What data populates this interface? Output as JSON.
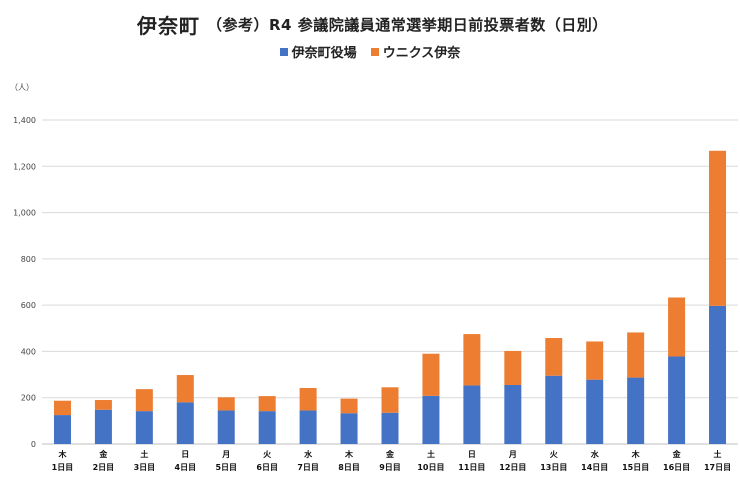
{
  "title": {
    "main": "伊奈町",
    "sub": "（参考）R4 参議院議員通常選挙期日前投票者数（日別）"
  },
  "unit_label": "（人）",
  "colors": {
    "town_hall": "#4472c4",
    "unix": "#ed7d31",
    "grid": "#d9d9d9"
  },
  "chart_data": {
    "type": "bar",
    "stacked": true,
    "categories": [
      "1日目",
      "2日目",
      "3日目",
      "4日目",
      "5日目",
      "6日目",
      "7日目",
      "8日目",
      "9日目",
      "10日目",
      "11日目",
      "12日目",
      "13日目",
      "14日目",
      "15日目",
      "16日目",
      "17日目"
    ],
    "weekdays": [
      "木",
      "金",
      "土",
      "日",
      "月",
      "火",
      "水",
      "木",
      "金",
      "土",
      "日",
      "月",
      "火",
      "水",
      "木",
      "金",
      "土"
    ],
    "series": [
      {
        "name": "伊奈町役場",
        "values": [
          125,
          148,
          142,
          180,
          145,
          142,
          145,
          133,
          135,
          208,
          253,
          255,
          295,
          278,
          287,
          378,
          597
        ]
      },
      {
        "name": "ウニクス伊奈",
        "values": [
          62,
          42,
          95,
          118,
          57,
          65,
          97,
          63,
          110,
          182,
          222,
          147,
          163,
          165,
          195,
          255,
          670
        ]
      }
    ],
    "ylim": [
      0,
      1400
    ],
    "yticks": [
      "0",
      "200",
      "400",
      "600",
      "800",
      "1,000",
      "1,200",
      "1,400"
    ],
    "grid": true,
    "legend_position": "top-center"
  }
}
